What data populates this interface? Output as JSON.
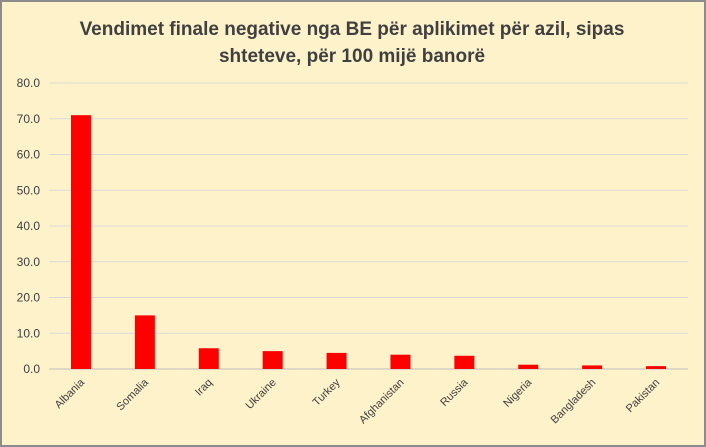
{
  "chart_data": {
    "type": "bar",
    "title_line1": "Vendimet finale negative nga BE për aplikimet për azil, sipas",
    "title_line2": "shteteve, për 100 mijë banorë",
    "categories": [
      "Albania",
      "Somalia",
      "Iraq",
      "Ukraine",
      "Turkey",
      "Afghanistan",
      "Russia",
      "Nigeria",
      "Bangladesh",
      "Pakistan"
    ],
    "values": [
      71.0,
      15.0,
      5.8,
      5.0,
      4.5,
      4.0,
      3.7,
      1.2,
      1.0,
      0.8
    ],
    "yticks": [
      "0.0",
      "10.0",
      "20.0",
      "30.0",
      "40.0",
      "50.0",
      "60.0",
      "70.0",
      "80.0"
    ],
    "ylim": [
      0,
      80
    ],
    "xlabel": "",
    "ylabel": "",
    "grid": true,
    "bar_color": "#ff0000",
    "background_color": "#fef2cb"
  }
}
